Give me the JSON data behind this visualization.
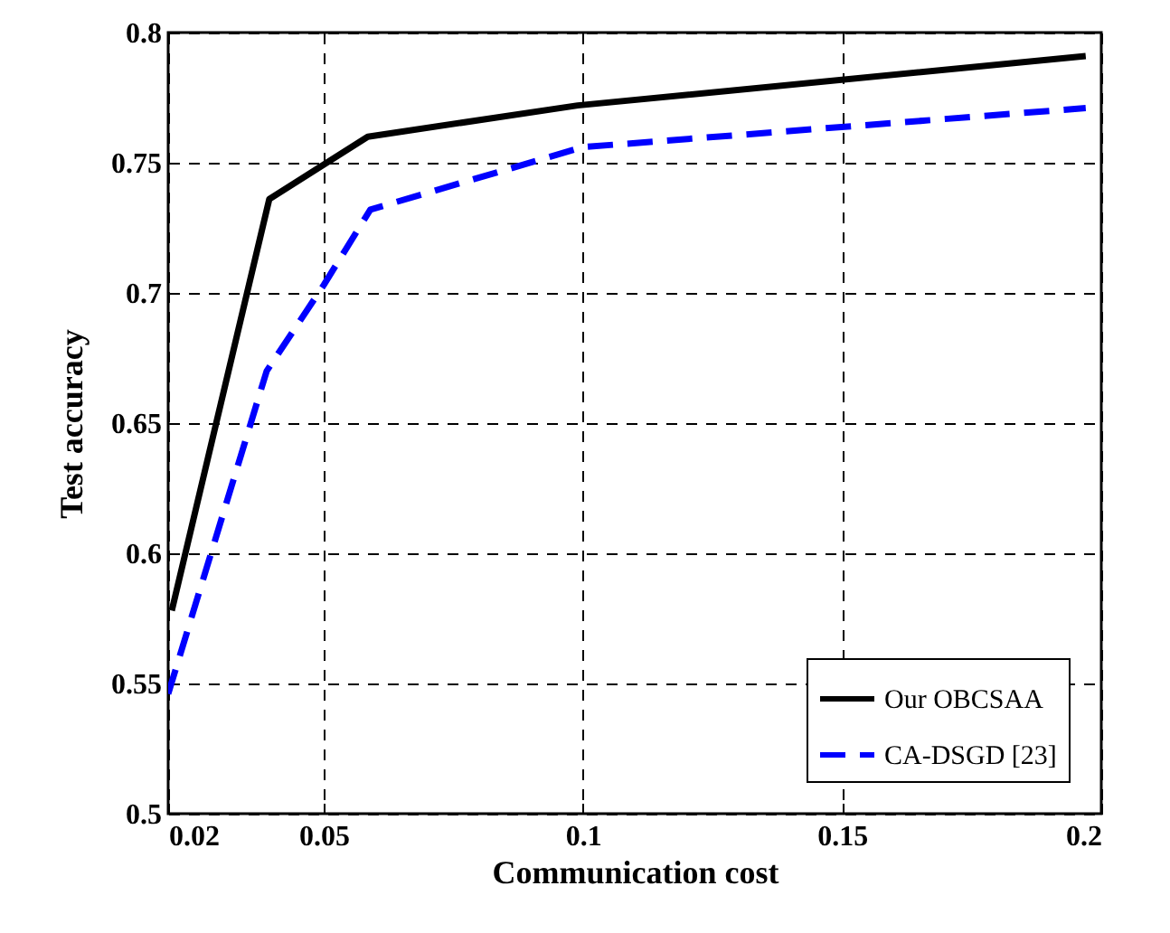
{
  "chart_data": {
    "type": "line",
    "xlabel": "Communication cost",
    "ylabel": "Test accuracy",
    "xlim": [
      0.02,
      0.2
    ],
    "xticks": [
      0.02,
      0.05,
      0.1,
      0.15,
      0.2
    ],
    "ylim": [
      0.5,
      0.8
    ],
    "yticks": [
      0.5,
      0.55,
      0.6,
      0.65,
      0.7,
      0.75,
      0.8
    ],
    "grid": true,
    "legend": "bottom right",
    "series": [
      {
        "name": "Our OBCSAA",
        "color": "#000000",
        "line_style": "solid",
        "x": [
          0.0207,
          0.0395,
          0.0585,
          0.099,
          0.197
        ],
        "values": [
          0.578,
          0.736,
          0.76,
          0.772,
          0.791
        ]
      },
      {
        "name": "CA-DSGD [23]",
        "color": "#0000ff",
        "line_style": "dashed",
        "x": [
          0.02,
          0.039,
          0.05,
          0.059,
          0.1,
          0.197
        ],
        "values": [
          0.546,
          0.67,
          0.703,
          0.732,
          0.756,
          0.771
        ]
      }
    ]
  }
}
